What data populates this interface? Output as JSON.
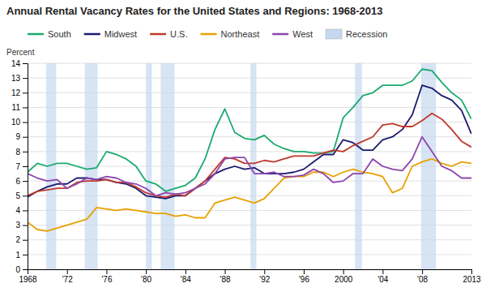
{
  "chart_data": {
    "type": "line",
    "title": "Annual Rental Vacancy Rates for the United States and Regions: 1968-2013",
    "y_label": "Percent",
    "x": [
      1968,
      1969,
      1970,
      1971,
      1972,
      1973,
      1974,
      1975,
      1976,
      1977,
      1978,
      1979,
      1980,
      1981,
      1982,
      1983,
      1984,
      1985,
      1986,
      1987,
      1988,
      1989,
      1990,
      1991,
      1992,
      1993,
      1994,
      1995,
      1996,
      1997,
      1998,
      1999,
      2000,
      2001,
      2002,
      2003,
      2004,
      2005,
      2006,
      2007,
      2008,
      2009,
      2010,
      2011,
      2012,
      2013
    ],
    "xlim": [
      1968,
      2013
    ],
    "xticks": [
      1968,
      {
        "value": 1972,
        "label": "'72"
      },
      {
        "value": 1976,
        "label": "'76"
      },
      {
        "value": 1980,
        "label": "'80"
      },
      {
        "value": 1984,
        "label": "'84"
      },
      {
        "value": 1988,
        "label": "'88"
      },
      {
        "value": 1992,
        "label": "'92"
      },
      {
        "value": 1996,
        "label": "'96"
      },
      2000,
      {
        "value": 2004,
        "label": "'04"
      },
      {
        "value": 2008,
        "label": "'08"
      },
      2013
    ],
    "ylim": [
      0,
      14
    ],
    "yticks": [
      0,
      1,
      2,
      3,
      4,
      5,
      6,
      7,
      8,
      9,
      10,
      11,
      12,
      13,
      14
    ],
    "grid": "y",
    "legend": "top",
    "bands": {
      "name": "Recession",
      "color": "#c5d8f0",
      "periods": [
        [
          1969.9,
          1970.9
        ],
        [
          1973.8,
          1975.1
        ],
        [
          1980.0,
          1980.6
        ],
        [
          1981.5,
          1982.9
        ],
        [
          1990.6,
          1991.2
        ],
        [
          2001.2,
          2001.9
        ],
        [
          2007.9,
          2009.4
        ]
      ]
    },
    "series": [
      {
        "name": "South",
        "color": "#1aaa6e",
        "values": [
          6.6,
          7.2,
          7.0,
          7.2,
          7.2,
          7.0,
          6.8,
          6.9,
          8.0,
          7.8,
          7.5,
          7.0,
          6.0,
          5.8,
          5.3,
          5.5,
          5.7,
          6.2,
          7.5,
          9.5,
          10.9,
          9.3,
          8.9,
          8.8,
          9.1,
          8.5,
          8.2,
          8.0,
          8.0,
          7.9,
          7.9,
          8.0,
          10.3,
          11.0,
          11.8,
          12.0,
          12.5,
          12.5,
          12.5,
          12.8,
          13.6,
          13.5,
          12.7,
          12.0,
          11.5,
          10.2
        ]
      },
      {
        "name": "Midwest",
        "color": "#1a1a6e",
        "values": [
          4.9,
          5.3,
          5.6,
          5.8,
          5.8,
          6.2,
          6.2,
          6.1,
          6.1,
          5.9,
          5.8,
          5.5,
          5.0,
          4.9,
          4.8,
          5.0,
          5.0,
          5.5,
          6.0,
          6.5,
          6.8,
          7.0,
          6.8,
          6.9,
          6.5,
          6.5,
          6.5,
          6.6,
          6.8,
          7.3,
          7.8,
          7.8,
          8.8,
          8.6,
          8.1,
          8.1,
          8.8,
          9.0,
          9.5,
          10.5,
          12.5,
          12.3,
          11.8,
          11.5,
          10.8,
          9.2
        ]
      },
      {
        "name": "U.S.",
        "color": "#c0392b",
        "values": [
          5.0,
          5.3,
          5.4,
          5.5,
          5.5,
          5.9,
          6.0,
          6.0,
          6.1,
          5.9,
          5.9,
          5.6,
          5.2,
          5.0,
          4.9,
          5.1,
          5.0,
          5.5,
          6.0,
          6.8,
          7.6,
          7.5,
          7.2,
          7.2,
          7.4,
          7.3,
          7.5,
          7.7,
          7.7,
          7.7,
          7.9,
          8.1,
          8.0,
          8.4,
          8.7,
          9.0,
          9.8,
          9.9,
          9.7,
          9.7,
          10.1,
          10.6,
          10.2,
          9.5,
          8.7,
          8.3
        ]
      },
      {
        "name": "Northeast",
        "color": "#e8a000",
        "values": [
          3.2,
          2.7,
          2.6,
          2.8,
          3.0,
          3.2,
          3.4,
          4.2,
          4.1,
          4.0,
          4.1,
          4.0,
          3.9,
          3.8,
          3.8,
          3.6,
          3.7,
          3.5,
          3.5,
          4.5,
          4.7,
          4.9,
          4.7,
          4.5,
          4.8,
          5.5,
          6.2,
          6.3,
          6.3,
          6.6,
          6.6,
          6.3,
          6.6,
          6.8,
          6.6,
          6.5,
          6.3,
          5.2,
          5.5,
          7.0,
          7.3,
          7.5,
          7.2,
          7.0,
          7.3,
          7.2
        ]
      },
      {
        "name": "West",
        "color": "#8e44ad",
        "values": [
          6.5,
          6.2,
          6.0,
          6.1,
          5.5,
          5.8,
          6.2,
          6.1,
          6.3,
          6.2,
          5.9,
          5.8,
          5.5,
          5.0,
          5.2,
          5.1,
          5.2,
          5.5,
          5.8,
          6.5,
          7.5,
          7.6,
          7.6,
          6.5,
          6.5,
          6.6,
          6.3,
          6.3,
          6.4,
          6.8,
          6.5,
          5.9,
          6.0,
          6.5,
          6.5,
          7.5,
          7.0,
          6.8,
          6.7,
          7.5,
          9.0,
          8.0,
          7.0,
          6.7,
          6.2,
          6.2
        ]
      }
    ]
  }
}
